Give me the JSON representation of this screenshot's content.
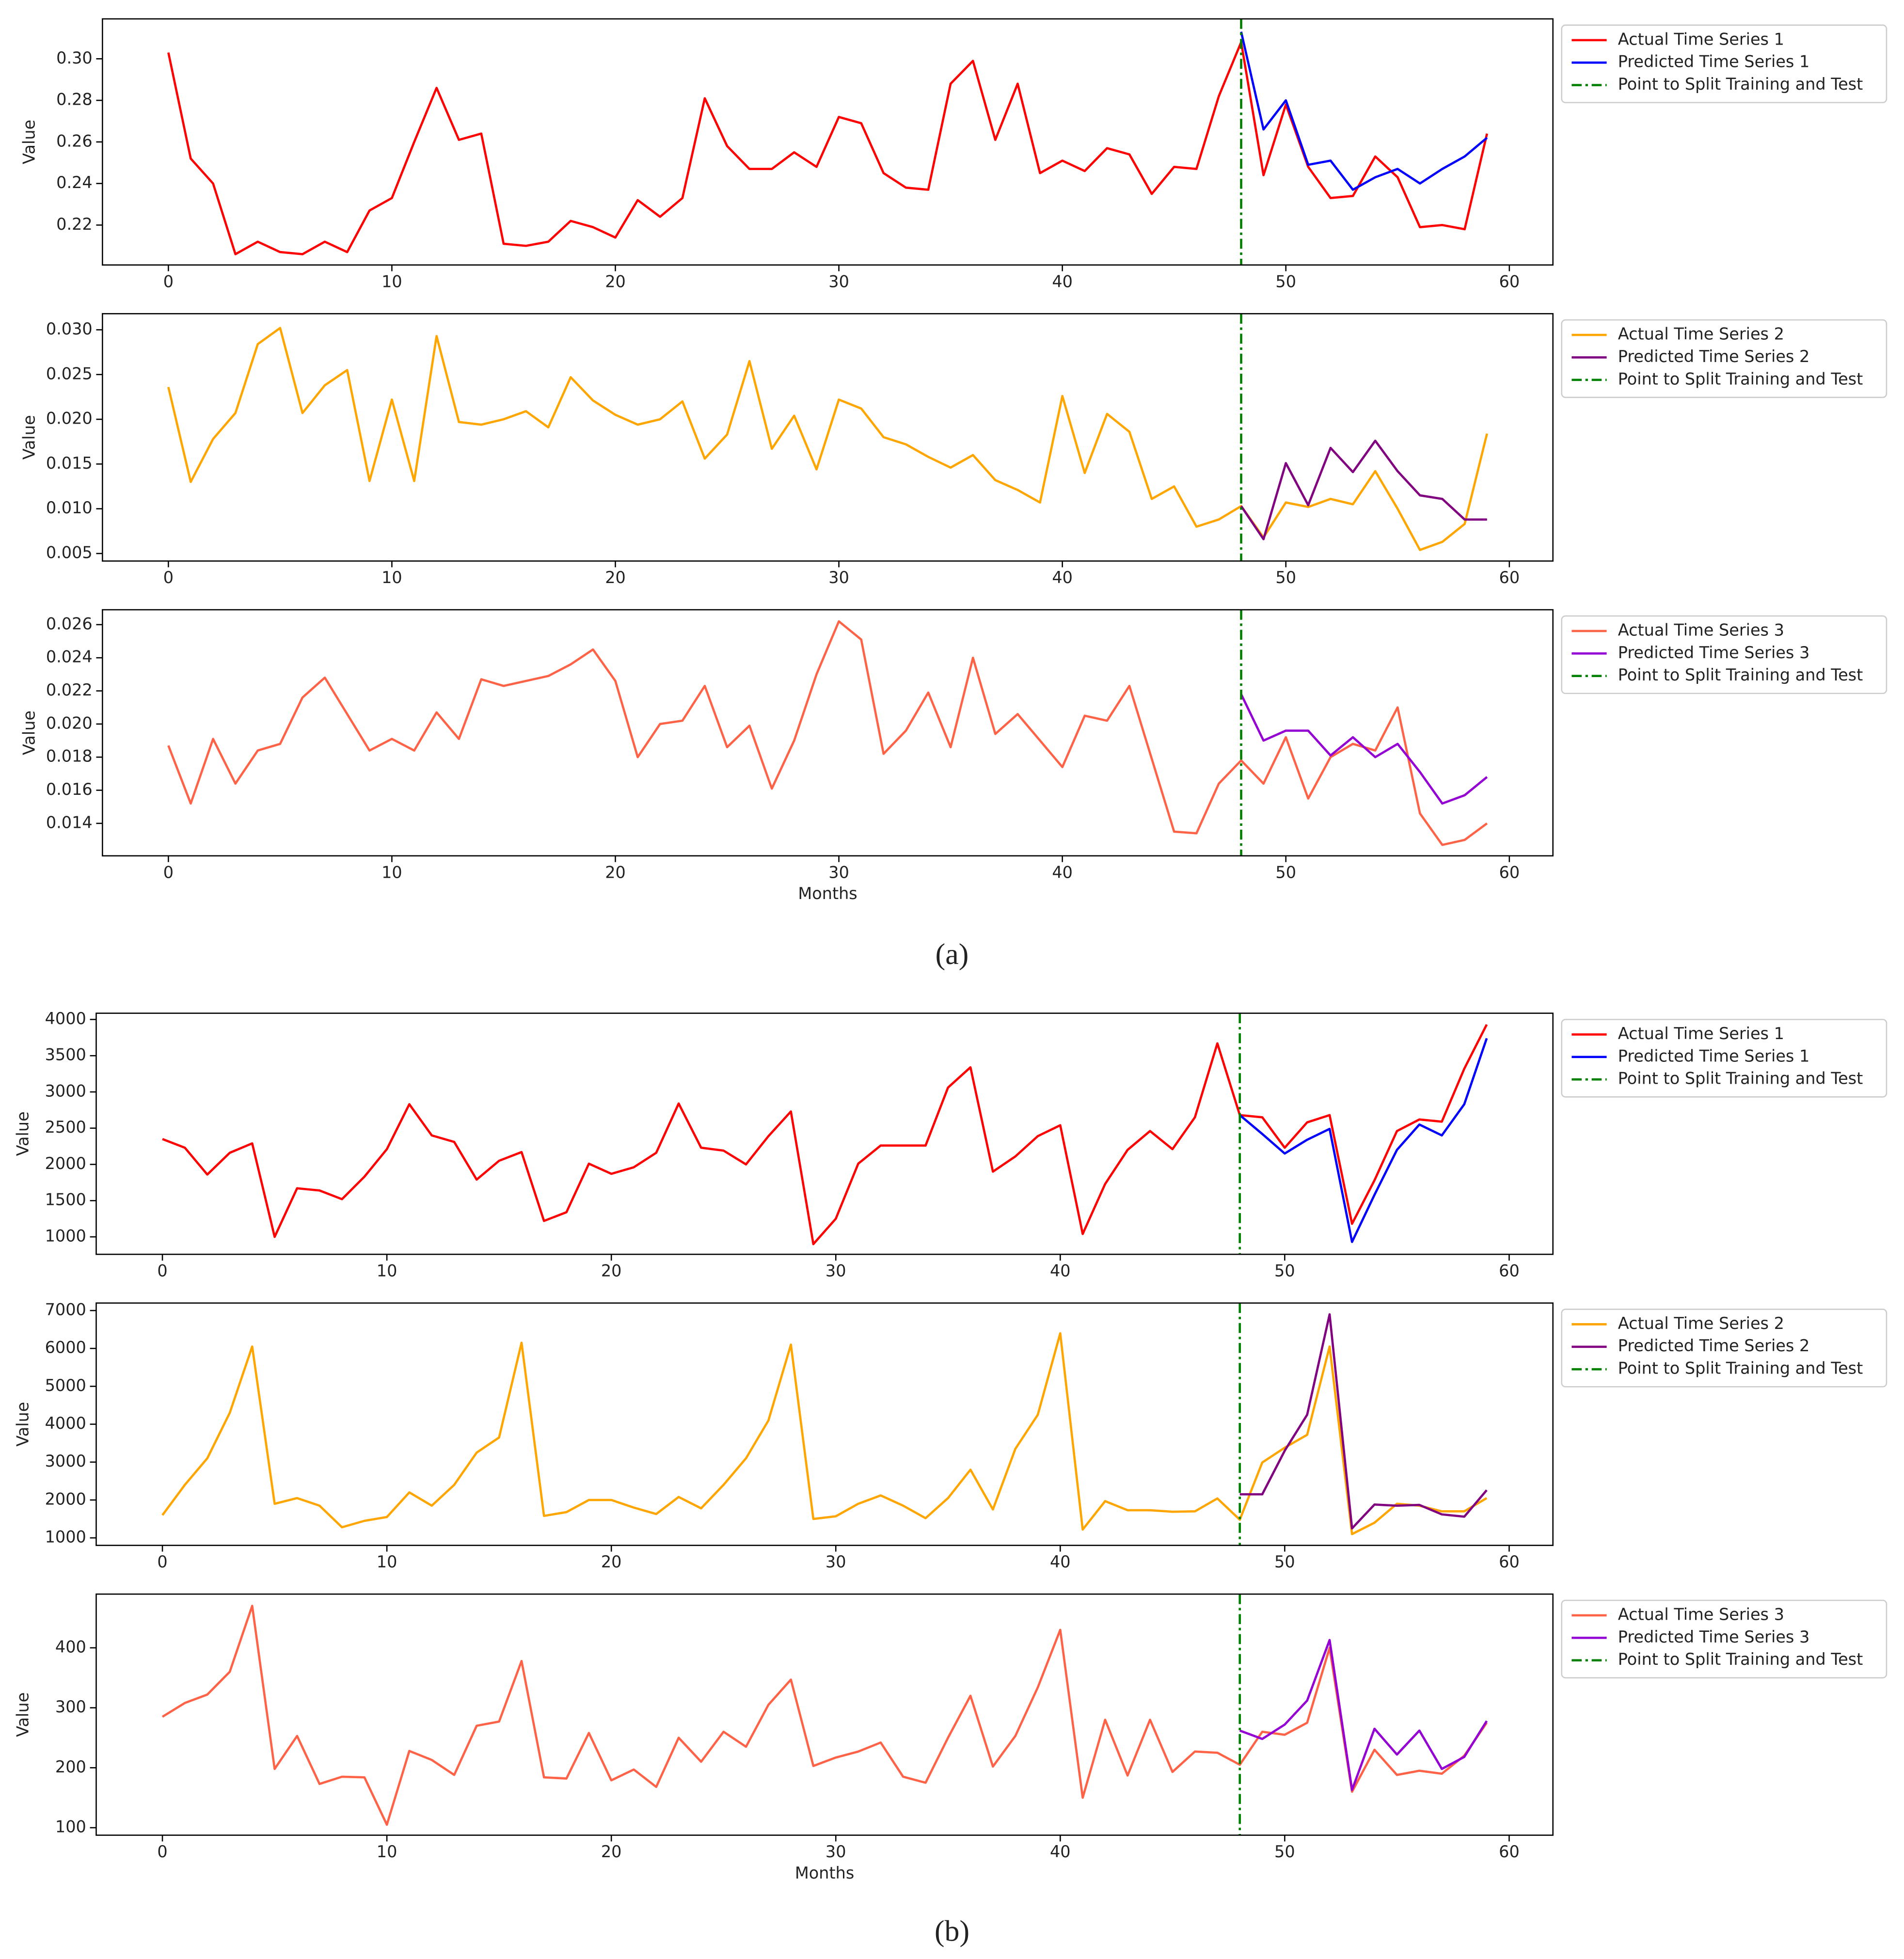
{
  "panels": [
    "(a)",
    "(b)"
  ],
  "chart_data": [
    {
      "type": "line",
      "ylabel": "Value",
      "legend": "outside upper right",
      "xlim": [
        -2.95,
        61.95
      ],
      "xticks": [
        0,
        10,
        20,
        30,
        40,
        50,
        60
      ],
      "ylim": [
        0.2008,
        0.3192
      ],
      "yticks": [
        0.22,
        0.24,
        0.26,
        0.28,
        {
          "value": 0.3,
          "label": "0.30"
        }
      ],
      "x": [
        0,
        1,
        2,
        3,
        4,
        5,
        6,
        7,
        8,
        9,
        10,
        11,
        12,
        13,
        14,
        15,
        16,
        17,
        18,
        19,
        20,
        21,
        22,
        23,
        24,
        25,
        26,
        27,
        28,
        29,
        30,
        31,
        32,
        33,
        34,
        35,
        36,
        37,
        38,
        39,
        40,
        41,
        42,
        43,
        44,
        45,
        46,
        47,
        48,
        49,
        50,
        51,
        52,
        53,
        54,
        55,
        56,
        57,
        58,
        59
      ],
      "series": [
        {
          "name": "Actual Time Series 1",
          "color": "#ff0000",
          "values": [
            0.303,
            0.252,
            0.24,
            0.206,
            0.212,
            0.207,
            0.206,
            0.212,
            0.207,
            0.227,
            0.233,
            0.26,
            0.286,
            0.261,
            0.264,
            0.211,
            0.21,
            0.212,
            0.222,
            0.219,
            0.214,
            0.232,
            0.224,
            0.233,
            0.281,
            0.258,
            0.247,
            0.247,
            0.255,
            0.248,
            0.272,
            0.269,
            0.245,
            0.238,
            0.237,
            0.288,
            0.299,
            0.261,
            0.288,
            0.245,
            0.251,
            0.246,
            0.257,
            0.254,
            0.235,
            0.248,
            0.247,
            0.282,
            0.308,
            0.244,
            0.278,
            0.248,
            0.233,
            0.234,
            0.253,
            0.243,
            0.219,
            0.22,
            0.218,
            0.264
          ]
        },
        {
          "name": "Predicted Time Series 1",
          "color": "#0000ff",
          "x": [
            48,
            49,
            50,
            51,
            52,
            53,
            54,
            55,
            56,
            57,
            58,
            59
          ],
          "values": [
            0.313,
            0.266,
            0.28,
            0.249,
            0.251,
            0.237,
            0.243,
            0.247,
            0.24,
            0.247,
            0.253,
            0.262
          ]
        }
      ],
      "split": {
        "name": "Point to Split Training and Test",
        "x": 48,
        "color": "#008000",
        "linestyle": "dashdot"
      }
    },
    {
      "type": "line",
      "ylabel": "Value",
      "legend": "outside upper right",
      "xlim": [
        -2.95,
        61.95
      ],
      "xticks": [
        0,
        10,
        20,
        30,
        40,
        50,
        60
      ],
      "ylim": [
        0.00416,
        0.0318
      ],
      "yticks": [
        0.005,
        {
          "value": 0.01,
          "label": "0.010"
        },
        0.015,
        {
          "value": 0.02,
          "label": "0.020"
        },
        0.025,
        {
          "value": 0.03,
          "label": "0.030"
        }
      ],
      "x": [
        0,
        1,
        2,
        3,
        4,
        5,
        6,
        7,
        8,
        9,
        10,
        11,
        12,
        13,
        14,
        15,
        16,
        17,
        18,
        19,
        20,
        21,
        22,
        23,
        24,
        25,
        26,
        27,
        28,
        29,
        30,
        31,
        32,
        33,
        34,
        35,
        36,
        37,
        38,
        39,
        40,
        41,
        42,
        43,
        44,
        45,
        46,
        47,
        48,
        49,
        50,
        51,
        52,
        53,
        54,
        55,
        56,
        57,
        58,
        59
      ],
      "series": [
        {
          "name": "Actual Time Series 2",
          "color": "#ffa500",
          "values": [
            0.0236,
            0.013,
            0.0178,
            0.0207,
            0.0284,
            0.0302,
            0.0207,
            0.0238,
            0.0255,
            0.0131,
            0.0222,
            0.0131,
            0.0293,
            0.0197,
            0.0194,
            0.02,
            0.0209,
            0.0191,
            0.0247,
            0.0221,
            0.0205,
            0.0194,
            0.02,
            0.022,
            0.0156,
            0.0183,
            0.0265,
            0.0167,
            0.0204,
            0.0144,
            0.0222,
            0.0212,
            0.018,
            0.0172,
            0.0158,
            0.0146,
            0.016,
            0.0132,
            0.0121,
            0.0107,
            0.0226,
            0.014,
            0.0206,
            0.0186,
            0.0111,
            0.0125,
            0.008,
            0.0088,
            0.0103,
            0.0068,
            0.0107,
            0.0102,
            0.0111,
            0.0105,
            0.0142,
            0.01,
            0.0054,
            0.0063,
            0.0083,
            0.0184
          ]
        },
        {
          "name": "Predicted Time Series 2",
          "color": "#800080",
          "x": [
            48,
            49,
            50,
            51,
            52,
            53,
            54,
            55,
            56,
            57,
            58,
            59
          ],
          "values": [
            0.0103,
            0.0066,
            0.0151,
            0.0104,
            0.0168,
            0.0141,
            0.0176,
            0.0142,
            0.0115,
            0.0111,
            0.0088,
            0.0088
          ]
        }
      ],
      "split": {
        "name": "Point to Split Training and Test",
        "x": 48,
        "color": "#008000",
        "linestyle": "dashdot"
      }
    },
    {
      "type": "line",
      "ylabel": "Value",
      "xlabel": "Months",
      "legend": "outside upper right",
      "xlim": [
        -2.95,
        61.95
      ],
      "xticks": [
        0,
        10,
        20,
        30,
        40,
        50,
        60
      ],
      "ylim": [
        0.01204,
        0.0269
      ],
      "yticks": [
        0.014,
        0.016,
        0.018,
        {
          "value": 0.02,
          "label": "0.020"
        },
        0.022,
        0.024,
        0.026
      ],
      "x": [
        0,
        1,
        2,
        3,
        4,
        5,
        6,
        7,
        8,
        9,
        10,
        11,
        12,
        13,
        14,
        15,
        16,
        17,
        18,
        19,
        20,
        21,
        22,
        23,
        24,
        25,
        26,
        27,
        28,
        29,
        30,
        31,
        32,
        33,
        34,
        35,
        36,
        37,
        38,
        39,
        40,
        41,
        42,
        43,
        44,
        45,
        46,
        47,
        48,
        49,
        50,
        51,
        52,
        53,
        54,
        55,
        56,
        57,
        58,
        59
      ],
      "series": [
        {
          "name": "Actual Time Series 3",
          "color": "#ff6347",
          "values": [
            0.0187,
            0.0152,
            0.0191,
            0.0164,
            0.0184,
            0.0188,
            0.0216,
            0.0228,
            0.0206,
            0.0184,
            0.0191,
            0.0184,
            0.0207,
            0.0191,
            0.0227,
            0.0223,
            0.0226,
            0.0229,
            0.0236,
            0.0245,
            0.0226,
            0.018,
            0.02,
            0.0202,
            0.0223,
            0.0186,
            0.0199,
            0.0161,
            0.019,
            0.023,
            0.0262,
            0.0251,
            0.0182,
            0.0196,
            0.0219,
            0.0186,
            0.024,
            0.0194,
            0.0206,
            0.019,
            0.0174,
            0.0205,
            0.0202,
            0.0223,
            0.0179,
            0.0135,
            0.0134,
            0.0164,
            0.0178,
            0.0164,
            0.0192,
            0.0155,
            0.018,
            0.0188,
            0.0184,
            0.021,
            0.0146,
            0.0127,
            0.013,
            0.014
          ]
        },
        {
          "name": "Predicted Time Series 3",
          "color": "#9400d3",
          "x": [
            48,
            49,
            50,
            51,
            52,
            53,
            54,
            55,
            56,
            57,
            58,
            59
          ],
          "values": [
            0.0218,
            0.019,
            0.0196,
            0.0196,
            0.0181,
            0.0192,
            0.018,
            0.0188,
            0.0171,
            0.0152,
            0.0157,
            0.0168
          ]
        }
      ],
      "split": {
        "name": "Point to Split Training and Test",
        "x": 48,
        "color": "#008000",
        "linestyle": "dashdot"
      }
    },
    {
      "type": "line",
      "ylabel": "Value",
      "legend": "outside upper right",
      "xlim": [
        -2.95,
        61.95
      ],
      "xticks": [
        0,
        10,
        20,
        30,
        40,
        50,
        60
      ],
      "ylim": [
        759,
        4086
      ],
      "yticks": [
        1000,
        1500,
        2000,
        2500,
        3000,
        3500,
        4000
      ],
      "x": [
        0,
        1,
        2,
        3,
        4,
        5,
        6,
        7,
        8,
        9,
        10,
        11,
        12,
        13,
        14,
        15,
        16,
        17,
        18,
        19,
        20,
        21,
        22,
        23,
        24,
        25,
        26,
        27,
        28,
        29,
        30,
        31,
        32,
        33,
        34,
        35,
        36,
        37,
        38,
        39,
        40,
        41,
        42,
        43,
        44,
        45,
        46,
        47,
        48,
        49,
        50,
        51,
        52,
        53,
        54,
        55,
        56,
        57,
        58,
        59
      ],
      "series": [
        {
          "name": "Actual Time Series 1",
          "color": "#ff0000",
          "values": [
            2350,
            2230,
            1860,
            2160,
            2290,
            1000,
            1670,
            1640,
            1520,
            1830,
            2210,
            2830,
            2400,
            2310,
            1790,
            2050,
            2170,
            1220,
            1340,
            2010,
            1870,
            1960,
            2160,
            2840,
            2230,
            2190,
            2000,
            2390,
            2730,
            900,
            1250,
            2010,
            2260,
            2260,
            2260,
            3060,
            3340,
            1900,
            2110,
            2390,
            2540,
            1040,
            1730,
            2200,
            2460,
            2210,
            2650,
            3670,
            2680,
            2650,
            2230,
            2580,
            2680,
            1180,
            1780,
            2460,
            2620,
            2590,
            3320,
            3930
          ]
        },
        {
          "name": "Predicted Time Series 1",
          "color": "#0000ff",
          "x": [
            48,
            49,
            50,
            51,
            52,
            53,
            54,
            55,
            56,
            57,
            58,
            59
          ],
          "values": [
            2680,
            2420,
            2150,
            2340,
            2490,
            930,
            1580,
            2200,
            2550,
            2400,
            2830,
            3740
          ]
        }
      ],
      "split": {
        "name": "Point to Split Training and Test",
        "x": 48,
        "color": "#008000",
        "linestyle": "dashdot"
      }
    },
    {
      "type": "line",
      "ylabel": "Value",
      "legend": "outside upper right",
      "xlim": [
        -2.95,
        61.95
      ],
      "xticks": [
        0,
        10,
        20,
        30,
        40,
        50,
        60
      ],
      "ylim": [
        802,
        7198
      ],
      "yticks": [
        1000,
        2000,
        3000,
        4000,
        5000,
        6000,
        7000
      ],
      "x": [
        0,
        1,
        2,
        3,
        4,
        5,
        6,
        7,
        8,
        9,
        10,
        11,
        12,
        13,
        14,
        15,
        16,
        17,
        18,
        19,
        20,
        21,
        22,
        23,
        24,
        25,
        26,
        27,
        28,
        29,
        30,
        31,
        32,
        33,
        34,
        35,
        36,
        37,
        38,
        39,
        40,
        41,
        42,
        43,
        44,
        45,
        46,
        47,
        48,
        49,
        50,
        51,
        52,
        53,
        54,
        55,
        56,
        57,
        58,
        59
      ],
      "series": [
        {
          "name": "Actual Time Series 2",
          "color": "#ffa500",
          "values": [
            1600,
            2400,
            3100,
            4300,
            6050,
            1900,
            2050,
            1850,
            1280,
            1450,
            1550,
            2200,
            1850,
            2400,
            3250,
            3650,
            6150,
            1580,
            1680,
            2000,
            2000,
            1800,
            1630,
            2080,
            1780,
            2400,
            3100,
            4100,
            6100,
            1500,
            1570,
            1900,
            2120,
            1850,
            1520,
            2050,
            2800,
            1750,
            3350,
            4250,
            6400,
            1220,
            1970,
            1730,
            1730,
            1690,
            1700,
            2040,
            1480,
            2990,
            3380,
            3720,
            6050,
            1100,
            1400,
            1900,
            1850,
            1700,
            1700,
            2050
          ]
        },
        {
          "name": "Predicted Time Series 2",
          "color": "#800080",
          "x": [
            48,
            49,
            50,
            51,
            52,
            53,
            54,
            55,
            56,
            57,
            58,
            59
          ],
          "values": [
            2150,
            2150,
            3300,
            4250,
            6900,
            1250,
            1880,
            1850,
            1870,
            1620,
            1560,
            2260
          ]
        }
      ],
      "split": {
        "name": "Point to Split Training and Test",
        "x": 48,
        "color": "#008000",
        "linestyle": "dashdot"
      }
    },
    {
      "type": "line",
      "ylabel": "Value",
      "xlabel": "Months",
      "legend": "outside upper right",
      "xlim": [
        -2.95,
        61.95
      ],
      "xticks": [
        0,
        10,
        20,
        30,
        40,
        50,
        60
      ],
      "ylim": [
        87.5,
        489.6
      ],
      "yticks": [
        100,
        200,
        300,
        400
      ],
      "x": [
        0,
        1,
        2,
        3,
        4,
        5,
        6,
        7,
        8,
        9,
        10,
        11,
        12,
        13,
        14,
        15,
        16,
        17,
        18,
        19,
        20,
        21,
        22,
        23,
        24,
        25,
        26,
        27,
        28,
        29,
        30,
        31,
        32,
        33,
        34,
        35,
        36,
        37,
        38,
        39,
        40,
        41,
        42,
        43,
        44,
        45,
        46,
        47,
        48,
        49,
        50,
        51,
        52,
        53,
        54,
        55,
        56,
        57,
        58,
        59
      ],
      "series": [
        {
          "name": "Actual Time Series 3",
          "color": "#ff6347",
          "values": [
            285,
            308,
            322,
            360,
            470,
            198,
            253,
            173,
            185,
            184,
            105,
            228,
            213,
            188,
            270,
            277,
            378,
            184,
            182,
            258,
            179,
            197,
            168,
            250,
            210,
            260,
            235,
            305,
            347,
            203,
            217,
            227,
            242,
            185,
            175,
            250,
            320,
            202,
            253,
            334,
            430,
            150,
            280,
            187,
            280,
            193,
            227,
            225,
            205,
            260,
            255,
            275,
            400,
            160,
            230,
            188,
            195,
            190,
            220,
            275
          ]
        },
        {
          "name": "Predicted Time Series 3",
          "color": "#9400d3",
          "x": [
            48,
            49,
            50,
            51,
            52,
            53,
            54,
            55,
            56,
            57,
            58,
            59
          ],
          "values": [
            262,
            248,
            272,
            312,
            413,
            163,
            265,
            222,
            262,
            198,
            218,
            278
          ]
        }
      ],
      "split": {
        "name": "Point to Split Training and Test",
        "x": 48,
        "color": "#008000",
        "linestyle": "dashdot"
      }
    }
  ]
}
